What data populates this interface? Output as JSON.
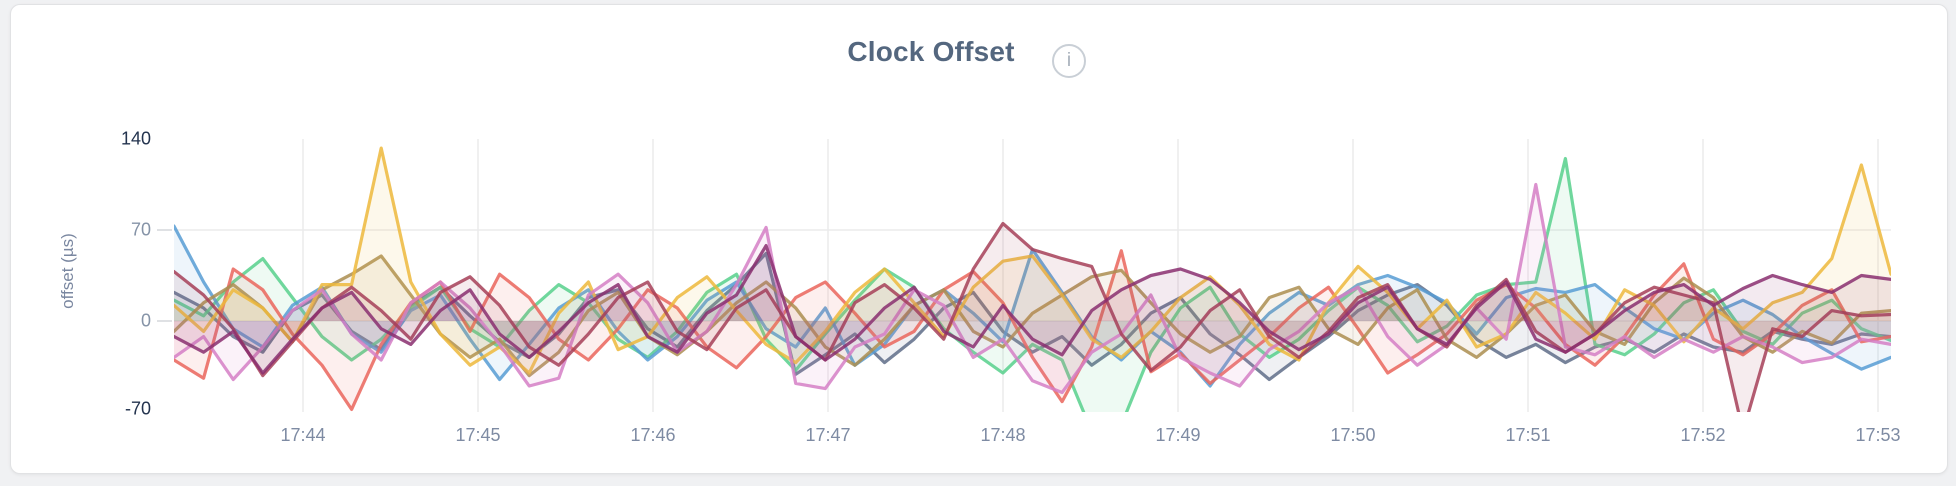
{
  "page": {
    "background_color": "#f0f1f3",
    "card_background": "#ffffff",
    "card_border_color": "#e1e2e4"
  },
  "header": {
    "title": "Clock Offset",
    "title_color": "#54677f",
    "info_icon": {
      "name": "info-icon",
      "glyph": "i"
    }
  },
  "axes": {
    "y_axis_title": "offset (µs)",
    "y_ticks": [
      {
        "label": "140",
        "value": 140,
        "emphasized": true
      },
      {
        "label": "70",
        "value": 70,
        "emphasized": false
      },
      {
        "label": "0",
        "value": 0,
        "emphasized": false
      },
      {
        "label": "-70",
        "value": -70,
        "emphasized": true
      }
    ],
    "x_tick_labels": [
      "17:44",
      "17:45",
      "17:46",
      "17:47",
      "17:48",
      "17:49",
      "17:50",
      "17:51",
      "17:52",
      "17:53"
    ],
    "tick_label_color_dim": "#8593a7",
    "tick_label_color_strong": "#23334e",
    "gridline_color": "#ebebec"
  },
  "chart_data": {
    "type": "line",
    "title": "Clock Offset",
    "xlabel": "",
    "ylabel": "offset (µs)",
    "ylim": [
      -70,
      140
    ],
    "grid": true,
    "legend_position": "none",
    "x_start_time": "17:43:16",
    "sample_interval_seconds": 10,
    "x_tick_labels": [
      "17:44",
      "17:45",
      "17:46",
      "17:47",
      "17:48",
      "17:49",
      "17:50",
      "17:51",
      "17:52",
      "17:53"
    ],
    "unit": "µs",
    "series": [
      {
        "name": "slate",
        "color": "#5F6D88",
        "values": [
          22,
          10,
          -12,
          -24,
          8,
          20,
          -8,
          -22,
          12,
          26,
          4,
          -16,
          -28,
          -10,
          18,
          24,
          -6,
          -20,
          8,
          28,
          52,
          -41,
          -26,
          -10,
          -32,
          -14,
          10,
          22,
          -8,
          -24,
          -12,
          -34,
          -18,
          6,
          18,
          -10,
          -26,
          -45,
          -28,
          -12,
          8,
          20,
          28,
          12,
          -14,
          -28,
          -18,
          -32,
          -20,
          -14,
          -24,
          -10,
          -20,
          -24,
          -8,
          -14,
          -18,
          -10,
          -12
        ]
      },
      {
        "name": "green",
        "color": "#57D08C",
        "values": [
          16,
          4,
          30,
          48,
          18,
          -12,
          -30,
          -14,
          10,
          26,
          -6,
          -20,
          8,
          28,
          14,
          -14,
          -28,
          -8,
          22,
          36,
          -14,
          -38,
          -10,
          16,
          40,
          26,
          -6,
          -24,
          -40,
          -18,
          -30,
          -85,
          -80,
          -24,
          10,
          26,
          -10,
          -28,
          -14,
          8,
          26,
          12,
          -16,
          -4,
          20,
          28,
          30,
          125,
          -18,
          -26,
          -10,
          14,
          24,
          -8,
          -18,
          6,
          16,
          -6,
          -15
        ]
      },
      {
        "name": "blue",
        "color": "#579CD3",
        "values": [
          73,
          30,
          -6,
          -20,
          12,
          26,
          -10,
          -24,
          8,
          20,
          -14,
          -45,
          -18,
          10,
          24,
          -8,
          -30,
          -12,
          16,
          30,
          -6,
          -20,
          10,
          -34,
          -18,
          12,
          24,
          6,
          -16,
          55,
          22,
          -12,
          -30,
          -8,
          -24,
          -50,
          -18,
          6,
          22,
          12,
          28,
          35,
          26,
          14,
          -10,
          18,
          25,
          22,
          28,
          10,
          -6,
          -14,
          6,
          16,
          5,
          -12,
          -25,
          -37,
          -28
        ]
      },
      {
        "name": "coral",
        "color": "#EA655C",
        "values": [
          -30,
          -44,
          40,
          24,
          -10,
          -34,
          -68,
          -18,
          14,
          30,
          -8,
          36,
          18,
          -14,
          -30,
          -6,
          24,
          10,
          -20,
          -36,
          -12,
          18,
          30,
          6,
          -20,
          -8,
          24,
          38,
          14,
          -28,
          -62,
          -20,
          54,
          -39,
          -25,
          -48,
          -30,
          -12,
          10,
          26,
          -6,
          -40,
          -26,
          -10,
          16,
          28,
          10,
          -18,
          -34,
          -12,
          20,
          44,
          -14,
          -26,
          -10,
          12,
          24,
          -16,
          -12
        ]
      },
      {
        "name": "khaki",
        "color": "#AC8E50",
        "values": [
          -8,
          14,
          28,
          10,
          -16,
          24,
          36,
          50,
          20,
          -10,
          -28,
          -14,
          -42,
          -24,
          8,
          22,
          -12,
          -26,
          -8,
          14,
          30,
          10,
          -20,
          -34,
          -14,
          12,
          24,
          -8,
          -20,
          6,
          20,
          34,
          39,
          14,
          -10,
          -24,
          -12,
          18,
          26,
          -6,
          -18,
          10,
          24,
          -14,
          -28,
          -10,
          12,
          20,
          -8,
          -18,
          14,
          33,
          18,
          -12,
          -24,
          -8,
          -17,
          6,
          8
        ]
      },
      {
        "name": "gold",
        "color": "#EDB93C",
        "values": [
          12,
          -8,
          24,
          10,
          -16,
          28,
          28,
          133,
          30,
          -10,
          -34,
          -20,
          -40,
          6,
          30,
          -22,
          -12,
          18,
          34,
          8,
          -18,
          -32,
          -8,
          22,
          40,
          14,
          -12,
          26,
          46,
          50,
          20,
          -14,
          -28,
          -8,
          18,
          34,
          12,
          -18,
          -30,
          14,
          42,
          22,
          -6,
          16,
          -20,
          -10,
          22,
          6,
          -14,
          24,
          12,
          -16,
          10,
          -6,
          14,
          22,
          48,
          120,
          36
        ]
      },
      {
        "name": "orchid",
        "color": "#D57FC5",
        "values": [
          -28,
          -12,
          -45,
          -20,
          8,
          24,
          -10,
          -30,
          14,
          30,
          10,
          -18,
          -50,
          -44,
          20,
          36,
          14,
          -24,
          -8,
          28,
          72,
          -48,
          -52,
          -20,
          -10,
          24,
          12,
          -28,
          -14,
          -46,
          -55,
          -24,
          -10,
          20,
          -28,
          -40,
          -50,
          -22,
          -8,
          14,
          26,
          -12,
          -34,
          -18,
          10,
          -14,
          105,
          -20,
          -26,
          -12,
          -28,
          -14,
          -24,
          -12,
          -20,
          -32,
          -28,
          -14,
          -18
        ]
      },
      {
        "name": "maroon",
        "color": "#A64058",
        "values": [
          38,
          20,
          -6,
          -42,
          -16,
          10,
          26,
          8,
          -14,
          22,
          34,
          12,
          -20,
          -34,
          -10,
          18,
          30,
          -8,
          -22,
          10,
          24,
          -12,
          -30,
          14,
          28,
          10,
          -14,
          40,
          75,
          55,
          48,
          42,
          -10,
          -38,
          -20,
          8,
          24,
          -12,
          -28,
          -8,
          18,
          28,
          -6,
          -20,
          12,
          32,
          -8,
          -24,
          -10,
          14,
          26,
          20,
          14,
          -85,
          -6,
          -12,
          8,
          4,
          5
        ]
      },
      {
        "name": "purple",
        "color": "#8A2F70",
        "values": [
          -12,
          -24,
          -8,
          -40,
          -14,
          10,
          22,
          -6,
          -18,
          8,
          24,
          -10,
          -28,
          -8,
          14,
          28,
          -12,
          -24,
          6,
          20,
          58,
          -12,
          -30,
          -14,
          10,
          26,
          -8,
          -20,
          12,
          -14,
          -26,
          8,
          24,
          35,
          40,
          32,
          14,
          -8,
          -22,
          -10,
          14,
          26,
          -6,
          -18,
          10,
          30,
          -14,
          -24,
          -10,
          8,
          22,
          28,
          12,
          25,
          35,
          28,
          22,
          35,
          32
        ]
      }
    ]
  }
}
